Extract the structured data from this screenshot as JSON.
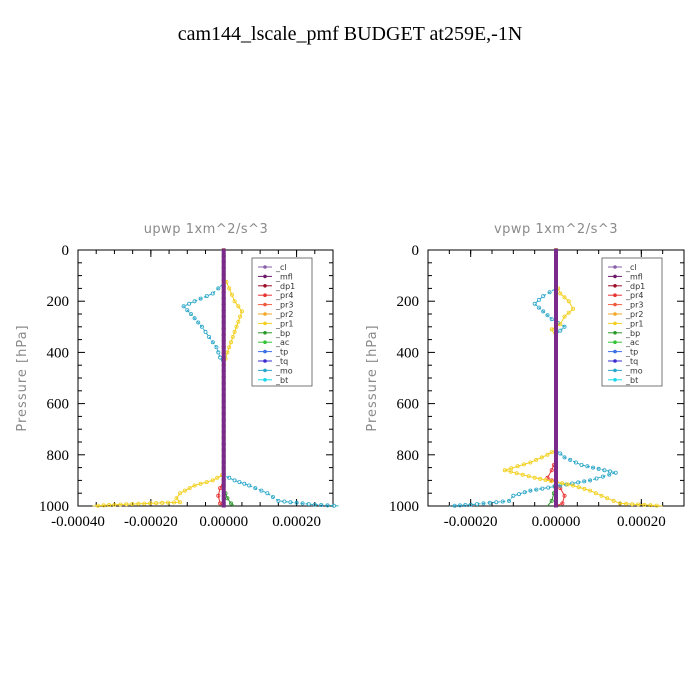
{
  "title": "cam144_lscale_pmf  BUDGET at259E,-1N",
  "legend_entries": [
    {
      "label": "_cl",
      "color": "#8a5fa8"
    },
    {
      "label": "_mfl",
      "color": "#6b1a6b"
    },
    {
      "label": "_dp1",
      "color": "#a0102a"
    },
    {
      "label": "_pr4",
      "color": "#e83232"
    },
    {
      "label": "_pr3",
      "color": "#f05a3c"
    },
    {
      "label": "_pr2",
      "color": "#f5a623"
    },
    {
      "label": "_pr1",
      "color": "#f2d020"
    },
    {
      "label": "_bp",
      "color": "#2a9a2a"
    },
    {
      "label": "_ac",
      "color": "#36c236"
    },
    {
      "label": "_tp",
      "color": "#3a6ee8"
    },
    {
      "label": "_tq",
      "color": "#3a2ad0"
    },
    {
      "label": "_mo",
      "color": "#2aa6c8"
    },
    {
      "label": "_bt",
      "color": "#18d8e8"
    }
  ],
  "chart_data": [
    {
      "type": "line",
      "title": "upwp  1xm^2/s^3",
      "ylabel": "Pressure [hPa]",
      "xlim": [
        -0.0004,
        0.0003
      ],
      "ylim": [
        1000,
        0
      ],
      "xticks": [
        "-0.00040",
        "-0.00020",
        "0.00000",
        "0.00020"
      ],
      "xtick_values": [
        -0.0004,
        -0.0002,
        0.0,
        0.0002
      ],
      "yticks": [
        "0",
        "200",
        "400",
        "600",
        "800",
        "1000"
      ],
      "ytick_values": [
        0,
        200,
        400,
        600,
        800,
        1000
      ],
      "legend_position": "top-right",
      "series": [
        {
          "name": "_cl",
          "points": [
            [
              0,
              0
            ],
            [
              0,
              1000
            ]
          ]
        },
        {
          "name": "_mfl",
          "points": [
            [
              0,
              0
            ],
            [
              0,
              1000
            ]
          ]
        },
        {
          "name": "_dp1",
          "points": [
            [
              0,
              0
            ],
            [
              0,
              1000
            ]
          ]
        },
        {
          "name": "_pr4",
          "points": [
            [
              0,
              0
            ],
            [
              0,
              900
            ],
            [
              -1e-05,
              930
            ],
            [
              -1.5e-05,
              960
            ],
            [
              -1e-05,
              990
            ],
            [
              0,
              1000
            ]
          ]
        },
        {
          "name": "_pr3",
          "points": [
            [
              0,
              0
            ],
            [
              0,
              1000
            ]
          ]
        },
        {
          "name": "_pr2",
          "points": [
            [
              0,
              0
            ],
            [
              0,
              1000
            ]
          ]
        },
        {
          "name": "_pr1",
          "points": [
            [
              0,
              0
            ],
            [
              0,
              100
            ],
            [
              1.5e-05,
              150
            ],
            [
              3e-05,
              200
            ],
            [
              5e-05,
              240
            ],
            [
              4e-05,
              280
            ],
            [
              3e-05,
              320
            ],
            [
              2e-05,
              360
            ],
            [
              1e-05,
              400
            ],
            [
              0,
              450
            ],
            [
              0,
              860
            ],
            [
              -5e-06,
              880
            ],
            [
              -3e-05,
              900
            ],
            [
              -8e-05,
              920
            ],
            [
              -0.00012,
              950
            ],
            [
              -0.00013,
              970
            ],
            [
              -0.00012,
              985
            ],
            [
              -0.0003,
              995
            ],
            [
              -0.00036,
              1000
            ]
          ]
        },
        {
          "name": "_bp",
          "points": [
            [
              0,
              0
            ],
            [
              0,
              920
            ],
            [
              5e-06,
              950
            ],
            [
              1e-05,
              970
            ],
            [
              2e-05,
              990
            ],
            [
              3e-05,
              1000
            ]
          ]
        },
        {
          "name": "_ac",
          "points": [
            [
              0,
              0
            ],
            [
              0,
              1000
            ]
          ]
        },
        {
          "name": "_tp",
          "points": [
            [
              0,
              0
            ],
            [
              0,
              1000
            ]
          ]
        },
        {
          "name": "_tq",
          "points": [
            [
              0,
              0
            ],
            [
              0,
              1000
            ]
          ]
        },
        {
          "name": "_mo",
          "points": [
            [
              0,
              0
            ],
            [
              0,
              130
            ],
            [
              -3e-05,
              170
            ],
            [
              -8e-05,
              200
            ],
            [
              -0.00011,
              220
            ],
            [
              -9e-05,
              250
            ],
            [
              -6e-05,
              300
            ],
            [
              -4e-05,
              340
            ],
            [
              -2e-05,
              380
            ],
            [
              -1e-05,
              420
            ],
            [
              0,
              450
            ],
            [
              0,
              880
            ],
            [
              3e-05,
              900
            ],
            [
              7e-05,
              920
            ],
            [
              0.00012,
              950
            ],
            [
              0.00015,
              980
            ],
            [
              0.00025,
              995
            ],
            [
              0.00032,
              1000
            ]
          ]
        },
        {
          "name": "_bt",
          "points": [
            [
              0,
              0
            ],
            [
              0,
              1000
            ]
          ]
        }
      ]
    },
    {
      "type": "line",
      "title": "vpwp  1xm^2/s^3",
      "ylabel": "Pressure [hPa]",
      "xlim": [
        -0.0003,
        0.0003
      ],
      "ylim": [
        1000,
        0
      ],
      "xticks": [
        "-0.00020",
        "0.00000",
        "0.00020"
      ],
      "xtick_values": [
        -0.0002,
        0.0,
        0.0002
      ],
      "yticks": [
        "0",
        "200",
        "400",
        "600",
        "800",
        "1000"
      ],
      "ytick_values": [
        0,
        200,
        400,
        600,
        800,
        1000
      ],
      "legend_position": "top-right",
      "series": [
        {
          "name": "_cl",
          "points": [
            [
              0,
              0
            ],
            [
              0,
              1000
            ]
          ]
        },
        {
          "name": "_mfl",
          "points": [
            [
              0,
              0
            ],
            [
              0,
              1000
            ]
          ]
        },
        {
          "name": "_dp1",
          "points": [
            [
              0,
              0
            ],
            [
              0,
              1000
            ]
          ]
        },
        {
          "name": "_pr4",
          "points": [
            [
              0,
              0
            ],
            [
              0,
              820
            ],
            [
              -1e-05,
              860
            ],
            [
              -2e-05,
              890
            ],
            [
              0,
              910
            ],
            [
              1e-05,
              930
            ],
            [
              2e-05,
              960
            ],
            [
              1.5e-05,
              990
            ],
            [
              0,
              1000
            ]
          ]
        },
        {
          "name": "_pr3",
          "points": [
            [
              0,
              0
            ],
            [
              0,
              1000
            ]
          ]
        },
        {
          "name": "_pr2",
          "points": [
            [
              0,
              0
            ],
            [
              0,
              1000
            ]
          ]
        },
        {
          "name": "_pr1",
          "points": [
            [
              0,
              0
            ],
            [
              0,
              130
            ],
            [
              1e-05,
              170
            ],
            [
              3e-05,
              200
            ],
            [
              4e-05,
              230
            ],
            [
              2e-05,
              260
            ],
            [
              1e-05,
              290
            ],
            [
              -1e-05,
              310
            ],
            [
              0,
              340
            ],
            [
              0,
              780
            ],
            [
              -2e-05,
              800
            ],
            [
              -6e-05,
              830
            ],
            [
              -0.00012,
              860
            ],
            [
              -5e-05,
              890
            ],
            [
              4e-05,
              920
            ],
            [
              8e-05,
              940
            ],
            [
              0.00012,
              970
            ],
            [
              0.00015,
              990
            ],
            [
              0.00025,
              1000
            ]
          ]
        },
        {
          "name": "_bp",
          "points": [
            [
              0,
              0
            ],
            [
              0,
              900
            ],
            [
              -5e-06,
              950
            ],
            [
              -1e-05,
              980
            ],
            [
              -2e-05,
              1000
            ]
          ]
        },
        {
          "name": "_ac",
          "points": [
            [
              0,
              0
            ],
            [
              0,
              1000
            ]
          ]
        },
        {
          "name": "_tp",
          "points": [
            [
              0,
              0
            ],
            [
              0,
              1000
            ]
          ]
        },
        {
          "name": "_tq",
          "points": [
            [
              0,
              0
            ],
            [
              0,
              1000
            ]
          ]
        },
        {
          "name": "_mo",
          "points": [
            [
              0,
              0
            ],
            [
              0,
              150
            ],
            [
              -3e-05,
              180
            ],
            [
              -5e-05,
              210
            ],
            [
              -3e-05,
              240
            ],
            [
              -1e-05,
              270
            ],
            [
              2e-05,
              300
            ],
            [
              0,
              330
            ],
            [
              0,
              780
            ],
            [
              2e-05,
              810
            ],
            [
              6e-05,
              840
            ],
            [
              0.00014,
              870
            ],
            [
              8e-05,
              900
            ],
            [
              1e-05,
              920
            ],
            [
              -6e-05,
              940
            ],
            [
              -0.0001,
              960
            ],
            [
              -0.00011,
              980
            ],
            [
              -0.0002,
              995
            ],
            [
              -0.00025,
              1000
            ]
          ]
        },
        {
          "name": "_bt",
          "points": [
            [
              0,
              0
            ],
            [
              0,
              1000
            ]
          ]
        }
      ]
    }
  ]
}
